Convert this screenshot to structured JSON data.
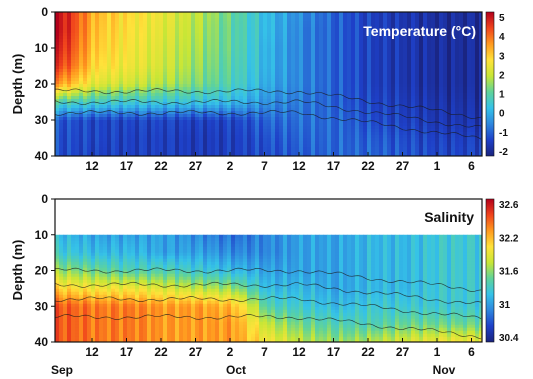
{
  "chart_data": [
    {
      "type": "heatmap",
      "title": "Temperature (°C)",
      "xlabel": "",
      "ylabel": "Depth (m)",
      "ylim": [
        0,
        40
      ],
      "y_ticks": [
        0,
        10,
        20,
        30,
        40
      ],
      "x_ticks": [
        "12",
        "17",
        "22",
        "27",
        "2",
        "7",
        "12",
        "17",
        "22",
        "27",
        "1",
        "6"
      ],
      "colorbar": {
        "ticks": [
          5,
          4,
          3,
          2,
          1,
          0,
          -1,
          -2
        ],
        "range": [
          -2,
          5
        ]
      },
      "colorscale": [
        "#1a237e",
        "#1e40c8",
        "#2e86de",
        "#35c2e8",
        "#5fd39a",
        "#c8e636",
        "#ffe23a",
        "#ff9a1f",
        "#f0431c",
        "#b3001b"
      ],
      "depth_rows": [
        0,
        5,
        10,
        15,
        20,
        25,
        30,
        35,
        40
      ],
      "time_columns": [
        {
          "label": "Sep 7",
          "values": [
            4.2,
            4.2,
            4.1,
            3.8,
            3.2,
            0.8,
            -0.8,
            -0.8,
            -0.9
          ]
        },
        {
          "label": "Sep 12",
          "values": [
            4.8,
            4.8,
            4.6,
            4.3,
            3.4,
            0.9,
            -1.0,
            -1.1,
            -1.1
          ]
        },
        {
          "label": "Sep 17",
          "values": [
            3.1,
            3.0,
            2.9,
            2.7,
            2.2,
            0.7,
            -1.2,
            -1.2,
            -1.3
          ]
        },
        {
          "label": "Sep 22",
          "values": [
            2.7,
            2.6,
            2.5,
            2.4,
            2.0,
            0.6,
            -1.2,
            -1.3,
            -1.3
          ]
        },
        {
          "label": "Sep 27",
          "values": [
            2.3,
            2.2,
            2.1,
            2.0,
            1.7,
            0.5,
            -1.2,
            -1.3,
            -1.3
          ]
        },
        {
          "label": "Oct 2",
          "values": [
            1.8,
            1.7,
            1.6,
            1.5,
            1.3,
            0.4,
            -1.3,
            -1.4,
            -1.4
          ]
        },
        {
          "label": "Oct 7",
          "values": [
            1.1,
            1.0,
            1.0,
            0.9,
            0.8,
            0.2,
            -1.2,
            -1.3,
            -1.3
          ]
        },
        {
          "label": "Oct 12",
          "values": [
            0.2,
            0.2,
            0.1,
            0.1,
            0.0,
            -0.3,
            -0.8,
            -1.0,
            -1.1
          ]
        },
        {
          "label": "Oct 17",
          "values": [
            -0.4,
            -0.5,
            -0.5,
            -0.5,
            -0.5,
            -0.6,
            -0.7,
            -0.8,
            -0.9
          ]
        },
        {
          "label": "Oct 22",
          "values": [
            -0.9,
            -0.9,
            -0.9,
            -0.9,
            -0.9,
            -0.9,
            -0.8,
            -0.8,
            -0.8
          ]
        },
        {
          "label": "Oct 27",
          "values": [
            -1.3,
            -1.3,
            -1.3,
            -1.3,
            -1.3,
            -1.2,
            -1.1,
            -0.9,
            -0.8
          ]
        },
        {
          "label": "Nov 1",
          "values": [
            -1.5,
            -1.5,
            -1.5,
            -1.5,
            -1.5,
            -1.4,
            -1.3,
            -1.1,
            -1.0
          ]
        },
        {
          "label": "Nov 6",
          "values": [
            -1.7,
            -1.7,
            -1.7,
            -1.7,
            -1.7,
            -1.6,
            -1.5,
            -1.3,
            -1.2
          ]
        }
      ]
    },
    {
      "type": "heatmap",
      "title": "Salinity",
      "xlabel": "",
      "ylabel": "Depth (m)",
      "ylim": [
        0,
        40
      ],
      "y_ticks": [
        0,
        10,
        20,
        30,
        40
      ],
      "x_ticks": [
        "12",
        "17",
        "22",
        "27",
        "2",
        "7",
        "12",
        "17",
        "22",
        "27",
        "1",
        "6"
      ],
      "x_month_labels": [
        "Sep",
        "Oct",
        "Nov"
      ],
      "colorbar": {
        "ticks": [
          "32.6",
          "32.2",
          "31.6",
          "31",
          "30.4"
        ],
        "range": [
          30.4,
          32.6
        ]
      },
      "colorscale": [
        "#1a237e",
        "#1e40c8",
        "#2e86de",
        "#35c2e8",
        "#5fd39a",
        "#c8e636",
        "#ffe23a",
        "#ff9a1f",
        "#f0431c",
        "#b3001b"
      ],
      "no_data_above_depth": 8,
      "depth_rows": [
        10,
        15,
        20,
        25,
        30,
        35,
        40
      ],
      "time_columns": [
        {
          "label": "Sep 7",
          "values": [
            31.2,
            31.3,
            31.6,
            32.0,
            32.3,
            32.3,
            32.3
          ]
        },
        {
          "label": "Sep 12",
          "values": [
            31.1,
            31.2,
            31.5,
            31.9,
            32.3,
            32.3,
            32.3
          ]
        },
        {
          "label": "Sep 17",
          "values": [
            31.0,
            31.1,
            31.4,
            31.8,
            32.2,
            32.2,
            32.2
          ]
        },
        {
          "label": "Sep 22",
          "values": [
            31.0,
            31.1,
            31.3,
            31.8,
            32.2,
            32.2,
            32.2
          ]
        },
        {
          "label": "Sep 27",
          "values": [
            31.0,
            31.0,
            31.3,
            31.7,
            32.1,
            32.1,
            32.1
          ]
        },
        {
          "label": "Oct 2",
          "values": [
            30.9,
            31.0,
            31.2,
            31.6,
            32.1,
            32.1,
            32.1
          ]
        },
        {
          "label": "Oct 7",
          "values": [
            30.8,
            30.9,
            31.1,
            31.5,
            32.0,
            32.1,
            32.1
          ]
        },
        {
          "label": "Oct 12",
          "values": [
            30.9,
            30.9,
            31.0,
            31.1,
            31.3,
            31.6,
            31.8
          ]
        },
        {
          "label": "Oct 17",
          "values": [
            31.0,
            31.0,
            31.0,
            31.1,
            31.2,
            31.4,
            31.6
          ]
        },
        {
          "label": "Oct 22",
          "values": [
            31.0,
            31.0,
            31.0,
            31.0,
            31.1,
            31.3,
            31.5
          ]
        },
        {
          "label": "Oct 27",
          "values": [
            31.1,
            31.1,
            31.1,
            31.1,
            31.2,
            31.3,
            31.6
          ]
        },
        {
          "label": "Nov 1",
          "values": [
            31.1,
            31.1,
            31.1,
            31.1,
            31.2,
            31.4,
            31.7
          ]
        },
        {
          "label": "Nov 6",
          "values": [
            31.2,
            31.2,
            31.2,
            31.2,
            31.2,
            31.4,
            31.8
          ]
        }
      ]
    }
  ]
}
